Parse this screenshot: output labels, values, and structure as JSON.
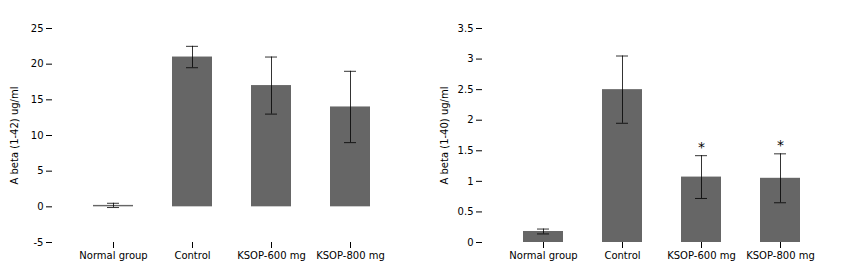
{
  "chart_data": [
    {
      "type": "bar",
      "categories": [
        "Normal group",
        "Control",
        "KSOP-600 mg",
        "KSOP-800 mg"
      ],
      "values": [
        0.2,
        21.0,
        17.0,
        14.0
      ],
      "errors": [
        0.3,
        1.5,
        4.0,
        5.0
      ],
      "ylabel": "A beta (1-42) ug/ml",
      "ylim": [
        -5,
        25
      ],
      "yticks": [
        -5,
        0,
        5,
        10,
        15,
        20,
        25
      ],
      "color": "#666666",
      "annotations": []
    },
    {
      "type": "bar",
      "categories": [
        "Normal group",
        "Control",
        "KSOP-600 mg",
        "KSOP-800 mg"
      ],
      "values": [
        0.18,
        2.5,
        1.07,
        1.05
      ],
      "errors": [
        0.04,
        0.55,
        0.35,
        0.4
      ],
      "ylabel": "A beta (1-40) ug/ml",
      "ylim": [
        0,
        3.5
      ],
      "yticks": [
        0,
        0.5,
        1.0,
        1.5,
        2.0,
        2.5,
        3.0,
        3.5
      ],
      "color": "#666666",
      "annotations": [
        {
          "x": "KSOP-600 mg",
          "text": "*"
        },
        {
          "x": "KSOP-800 mg",
          "text": "*"
        }
      ]
    }
  ]
}
